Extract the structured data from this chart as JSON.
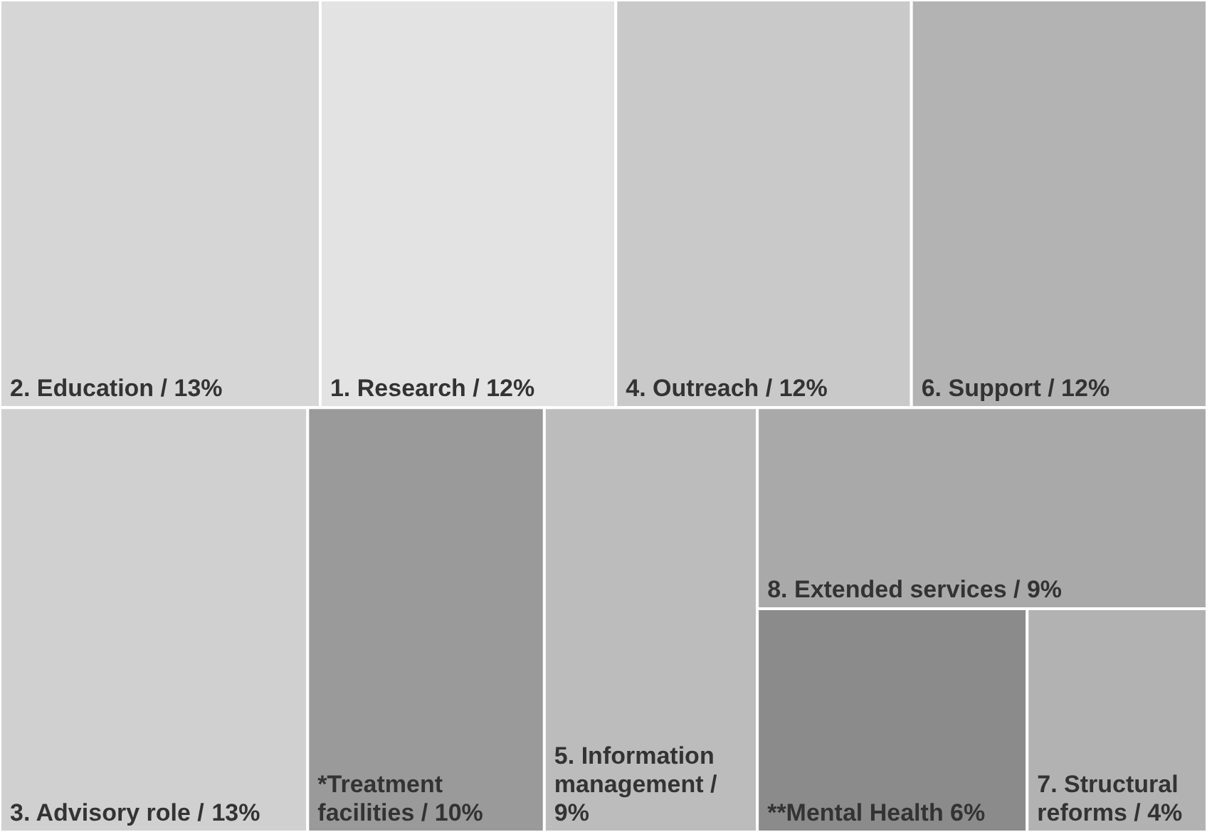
{
  "chart_data": {
    "type": "other",
    "categories": [
      "2. Education /",
      "1. Research /",
      "4. Outreach /",
      "6. Support /",
      "3. Advisory role /",
      "*Treatment facilities /",
      "5. Information management /",
      "8. Extended services /",
      "**Mental Health",
      "7. Structural reforms /"
    ],
    "value_labels": [
      "13%",
      "12%",
      "12%",
      "12%",
      "13%",
      "10%",
      "9%",
      "9%",
      "6%",
      "4%"
    ],
    "values": [
      13,
      12,
      12,
      12,
      13,
      10,
      9,
      9,
      6,
      4
    ],
    "colors": [
      "#d6d6d6",
      "#e3e3e3",
      "#c9c9c9",
      "#b3b3b3",
      "#d0d0d0",
      "#9a9a9a",
      "#bcbcbc",
      "#a9a9a9",
      "#8b8b8b",
      "#b2b2b2"
    ]
  }
}
